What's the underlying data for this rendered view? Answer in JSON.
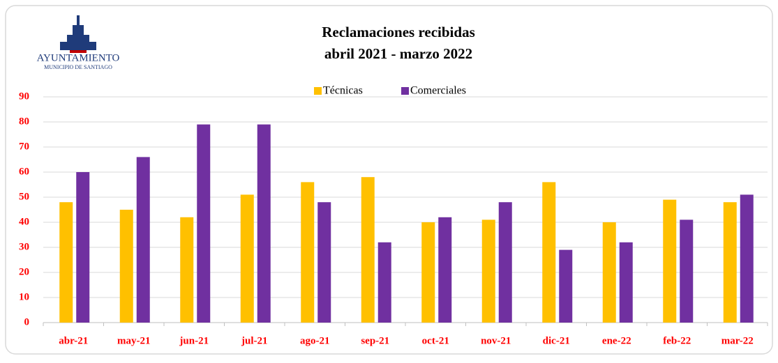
{
  "logo": {
    "name": "AYUNTAMIENTO",
    "subtitle": "MUNICIPIO DE SANTIAGO"
  },
  "chart_data": {
    "type": "bar",
    "title": "Reclamaciones recibidas",
    "subtitle": "abril 2021 - marzo 2022",
    "categories": [
      "abr-21",
      "may-21",
      "jun-21",
      "jul-21",
      "ago-21",
      "sep-21",
      "oct-21",
      "nov-21",
      "dic-21",
      "ene-22",
      "feb-22",
      "mar-22"
    ],
    "series": [
      {
        "name": "Técnicas",
        "color": "#FFC000",
        "values": [
          48,
          45,
          42,
          51,
          56,
          58,
          40,
          41,
          56,
          40,
          49,
          48
        ]
      },
      {
        "name": "Comerciales",
        "color": "#7030A0",
        "values": [
          60,
          66,
          79,
          79,
          48,
          32,
          42,
          48,
          29,
          32,
          41,
          51
        ]
      }
    ],
    "ylim": [
      0,
      90
    ],
    "yticks": [
      0,
      10,
      20,
      30,
      40,
      50,
      60,
      70,
      80,
      90
    ],
    "grid": true,
    "legend": "top"
  }
}
